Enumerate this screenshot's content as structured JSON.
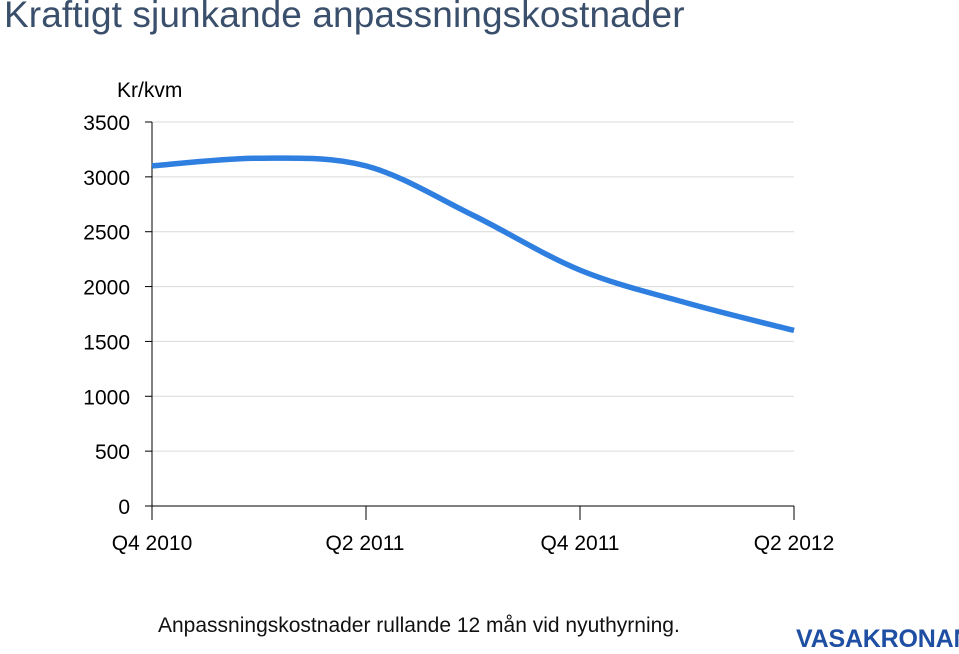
{
  "page": {
    "title": "Kraftigt sjunkande anpassningskostnader",
    "caption": "Anpassningskostnader rullande 12 mån vid nyuthyrning.",
    "brand": "VASAKRONAN"
  },
  "colors": {
    "line": "#2f7fe0",
    "title": "#3a4f6b",
    "brand": "#1f4fa3",
    "grid": "#d9d9d9"
  },
  "chart_data": {
    "type": "line",
    "ylabel": "Kr/kvm",
    "ylim": [
      0,
      3500
    ],
    "yticks": [
      0,
      500,
      1000,
      1500,
      2000,
      2500,
      3000,
      3500
    ],
    "xtick_labels": [
      "Q4 2010",
      "Q2 2011",
      "Q4 2011",
      "Q2 2012"
    ],
    "grid": true,
    "legend": "none",
    "x": [
      "Q4 2010",
      "Q1 2011",
      "Q2 2011",
      "Q3 2011",
      "Q4 2011",
      "Q1 2012",
      "Q2 2012"
    ],
    "series": [
      {
        "values": [
          3100,
          3170,
          3100,
          2650,
          2150,
          1850,
          1600
        ]
      }
    ]
  }
}
